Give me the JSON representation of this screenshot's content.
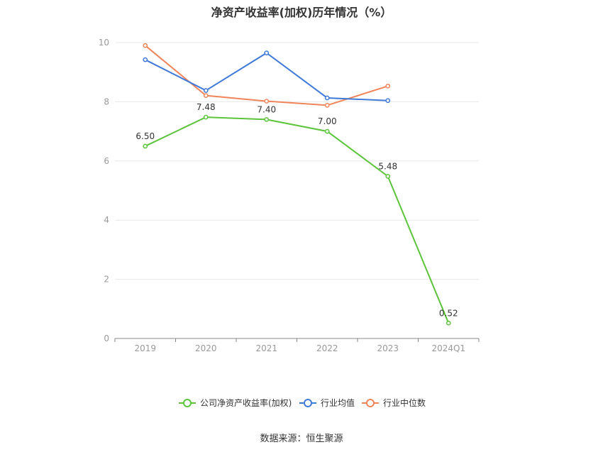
{
  "header": {
    "title": "净资产收益率(加权)历年情况（%）"
  },
  "footer": {
    "source": "数据来源：恒生聚源"
  },
  "colors": {
    "company": "#5cc43a",
    "avg": "#3f7ad8",
    "median": "#f0845a",
    "grid": "#e8e8e8",
    "axis": "#888888"
  },
  "chart_data": {
    "type": "line",
    "title": "净资产收益率(加权)历年情况（%）",
    "categories": [
      "2019",
      "2020",
      "2021",
      "2022",
      "2023",
      "2024Q1"
    ],
    "yticks": [
      "0",
      "2",
      "4",
      "6",
      "8",
      "10"
    ],
    "ylim": [
      0,
      10
    ],
    "grid": true,
    "legend_position": "bottom",
    "series": [
      {
        "name": "公司净资产收益率(加权)",
        "key": "company",
        "values": [
          6.5,
          7.48,
          7.4,
          7.0,
          5.48,
          0.52
        ],
        "labels": [
          "6.50",
          "7.48",
          "7.40",
          "7.00",
          "5.48",
          "0.52"
        ]
      },
      {
        "name": "行业均值",
        "key": "avg",
        "values": [
          9.42,
          8.38,
          9.65,
          8.13,
          8.04,
          null
        ]
      },
      {
        "name": "行业中位数",
        "key": "median",
        "values": [
          9.9,
          8.21,
          8.02,
          7.88,
          8.53,
          null
        ]
      }
    ]
  }
}
